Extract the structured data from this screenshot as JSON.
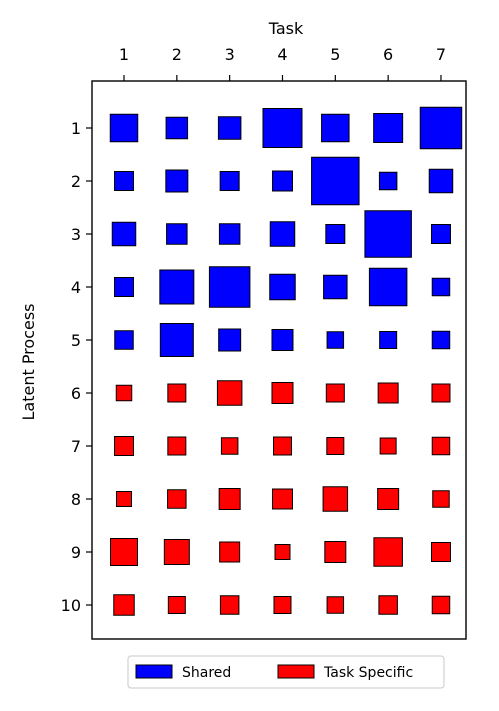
{
  "chart_data": {
    "type": "heatmap",
    "style": "hinton",
    "xlabel": "Task",
    "ylabel": "Latent Process",
    "x_categories": [
      "1",
      "2",
      "3",
      "4",
      "5",
      "6",
      "7"
    ],
    "y_categories": [
      "1",
      "2",
      "3",
      "4",
      "5",
      "6",
      "7",
      "8",
      "9",
      "10"
    ],
    "x_axis_position": "top",
    "grid": false,
    "legend_position": "bottom",
    "series": [
      {
        "name": "Shared",
        "color": "#0000ff",
        "rows": [
          "1",
          "2",
          "3",
          "4",
          "5"
        ],
        "values": [
          [
            0.55,
            0.43,
            0.45,
            0.78,
            0.55,
            0.58,
            0.83
          ],
          [
            0.38,
            0.44,
            0.38,
            0.4,
            0.95,
            0.35,
            0.47
          ],
          [
            0.47,
            0.41,
            0.41,
            0.49,
            0.38,
            0.93,
            0.38
          ],
          [
            0.38,
            0.68,
            0.81,
            0.51,
            0.47,
            0.75,
            0.35
          ],
          [
            0.37,
            0.66,
            0.44,
            0.42,
            0.33,
            0.34,
            0.35
          ]
        ]
      },
      {
        "name": "Task Specific",
        "color": "#ff0000",
        "rows": [
          "6",
          "7",
          "8",
          "9",
          "10"
        ],
        "values": [
          [
            0.31,
            0.36,
            0.49,
            0.42,
            0.36,
            0.4,
            0.36
          ],
          [
            0.38,
            0.36,
            0.33,
            0.36,
            0.34,
            0.32,
            0.35
          ],
          [
            0.3,
            0.37,
            0.42,
            0.4,
            0.49,
            0.42,
            0.33
          ],
          [
            0.54,
            0.5,
            0.4,
            0.3,
            0.42,
            0.57,
            0.38
          ],
          [
            0.41,
            0.34,
            0.37,
            0.34,
            0.33,
            0.37,
            0.35
          ]
        ]
      }
    ]
  }
}
